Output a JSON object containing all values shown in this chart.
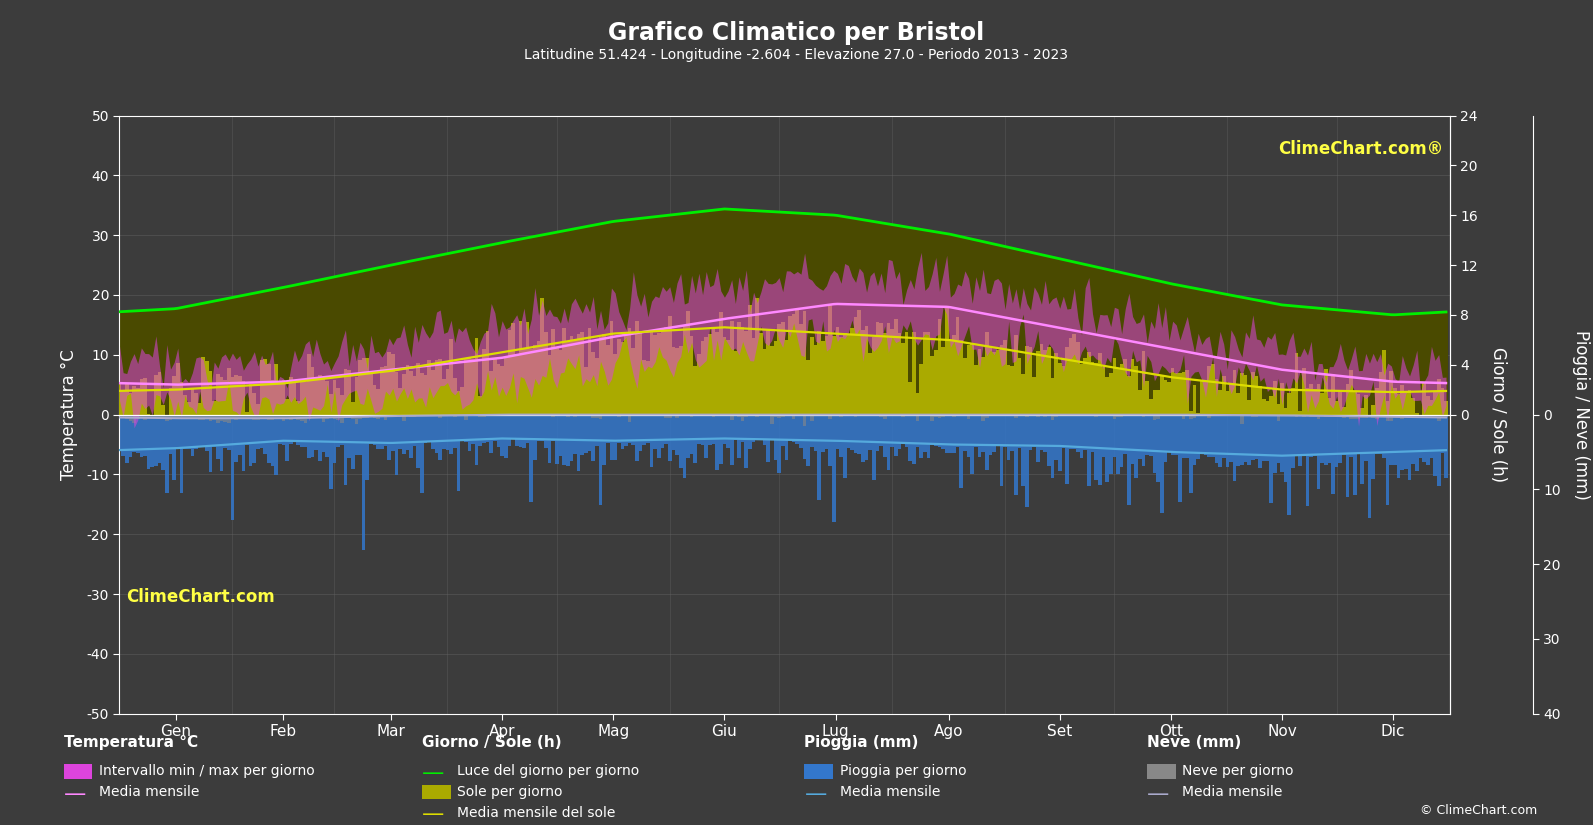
{
  "title": "Grafico Climatico per Bristol",
  "subtitle": "Latitudine 51.424 - Longitudine -2.604 - Elevazione 27.0 - Periodo 2013 - 2023",
  "months": [
    "Gen",
    "Feb",
    "Mar",
    "Apr",
    "Mag",
    "Giu",
    "Lug",
    "Ago",
    "Set",
    "Ott",
    "Nov",
    "Dic"
  ],
  "days_per_month": [
    31,
    28,
    31,
    30,
    31,
    30,
    31,
    31,
    30,
    31,
    30,
    31
  ],
  "temp_ylim": [
    -50,
    50
  ],
  "sun_ylim": [
    0,
    24
  ],
  "rain_ylim_mm": [
    0,
    40
  ],
  "temp_mean": [
    5.0,
    5.5,
    7.5,
    9.5,
    13.0,
    16.0,
    18.5,
    18.0,
    14.5,
    11.0,
    7.5,
    5.5
  ],
  "temp_min_mean": [
    1.5,
    1.5,
    3.0,
    5.0,
    8.0,
    11.0,
    13.0,
    13.0,
    10.0,
    7.5,
    4.0,
    2.0
  ],
  "temp_max_mean": [
    8.5,
    9.0,
    12.0,
    15.0,
    18.5,
    21.5,
    23.5,
    23.0,
    19.0,
    14.5,
    11.0,
    8.5
  ],
  "daylight_hours": [
    8.5,
    10.2,
    12.0,
    13.8,
    15.5,
    16.5,
    16.0,
    14.5,
    12.5,
    10.5,
    8.8,
    8.0
  ],
  "sunshine_hours": [
    2.0,
    2.5,
    3.5,
    5.0,
    6.5,
    7.0,
    6.5,
    6.0,
    4.5,
    3.0,
    2.0,
    1.8
  ],
  "rain_mean_mm": [
    4.5,
    3.5,
    3.8,
    3.2,
    3.5,
    3.2,
    3.5,
    4.0,
    4.2,
    5.0,
    5.5,
    5.0
  ],
  "snow_mean_mm": [
    0.5,
    0.5,
    0.2,
    0.0,
    0.0,
    0.0,
    0.0,
    0.0,
    0.0,
    0.0,
    0.1,
    0.3
  ],
  "background_color": "#3c3c3c",
  "text_color": "#ffffff",
  "grid_color": "#666666",
  "temp_band_color": "#dd44dd",
  "temp_line_color": "#ff88ff",
  "daylight_bar_color": "#4a4a00",
  "sunshine_bar_color": "#aaaa00",
  "daylight_line_color": "#00ee00",
  "sunshine_mean_color": "#dddd00",
  "rain_bar_color": "#3377cc",
  "rain_line_color": "#55aadd",
  "snow_bar_color": "#888888",
  "snow_line_color": "#aaaacc",
  "logo_color_top": "#ffff00",
  "logo_color_bot": "#ffff00"
}
